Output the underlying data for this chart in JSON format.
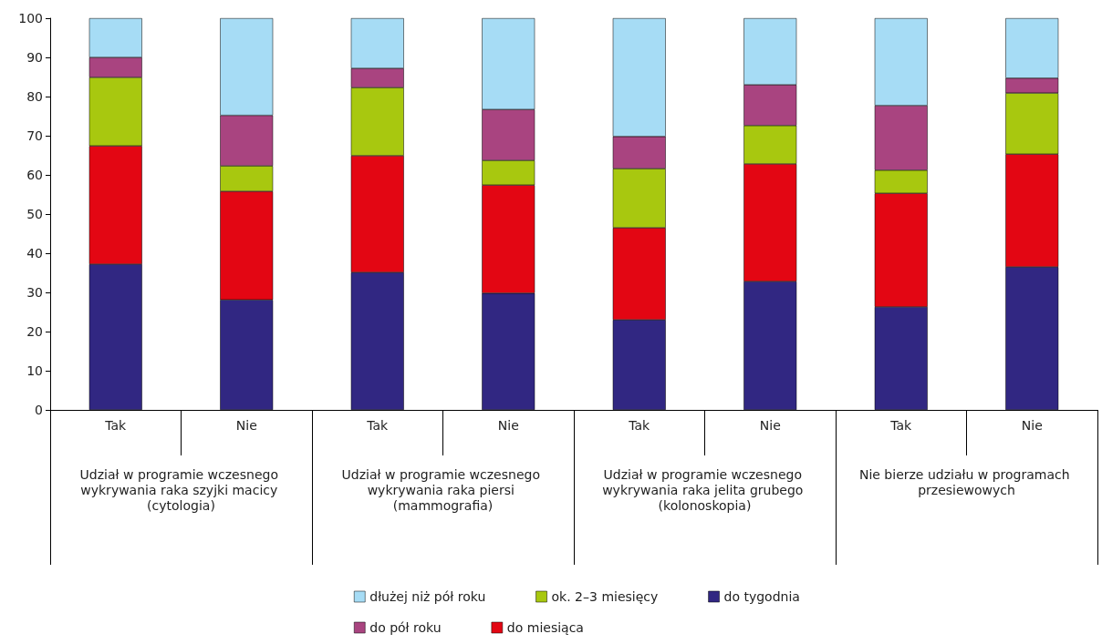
{
  "chart_data": {
    "type": "bar",
    "stacked": true,
    "categories": [
      "Tak",
      "Nie",
      "Tak",
      "Nie",
      "Tak",
      "Nie",
      "Tak",
      "Nie"
    ],
    "annotations": [
      "Udział w programie wczesnego wykrywania raka szyjki macicy (cytologia)",
      "Udział w programie wczesnego wykrywania raka piersi (mammografia)",
      "Udział w programie wczesnego wykrywania raka jelita grubego (kolonoskopia)",
      "Nie bierze udziału w programach przesiewowych"
    ],
    "series": [
      {
        "name": "do tygodnia",
        "color": "#312782",
        "values": [
          37.2,
          28.1,
          35.1,
          29.8,
          23.0,
          32.8,
          26.3,
          36.5
        ]
      },
      {
        "name": "do miesiąca",
        "color": "#e30613",
        "values": [
          30.2,
          27.7,
          29.8,
          27.6,
          23.5,
          30.0,
          29.0,
          28.8
        ]
      },
      {
        "name": "ok. 2–3 miesięcy",
        "color": "#a8c80f",
        "values": [
          17.5,
          6.5,
          17.4,
          6.3,
          15.1,
          9.8,
          5.9,
          15.6
        ]
      },
      {
        "name": "do pół roku",
        "color": "#a94480",
        "values": [
          5.1,
          12.9,
          4.9,
          13.0,
          8.2,
          10.4,
          16.5,
          3.8
        ]
      },
      {
        "name": "dłużej niż pół roku",
        "color": "#a6dcf5",
        "values": [
          10.0,
          24.8,
          12.8,
          23.3,
          30.2,
          17.0,
          22.3,
          15.3
        ]
      }
    ],
    "ylim": [
      0,
      100
    ],
    "yticks": [
      0,
      10,
      20,
      30,
      40,
      50,
      60,
      70,
      80,
      90,
      100
    ],
    "grid": false,
    "legend": "bottom"
  }
}
